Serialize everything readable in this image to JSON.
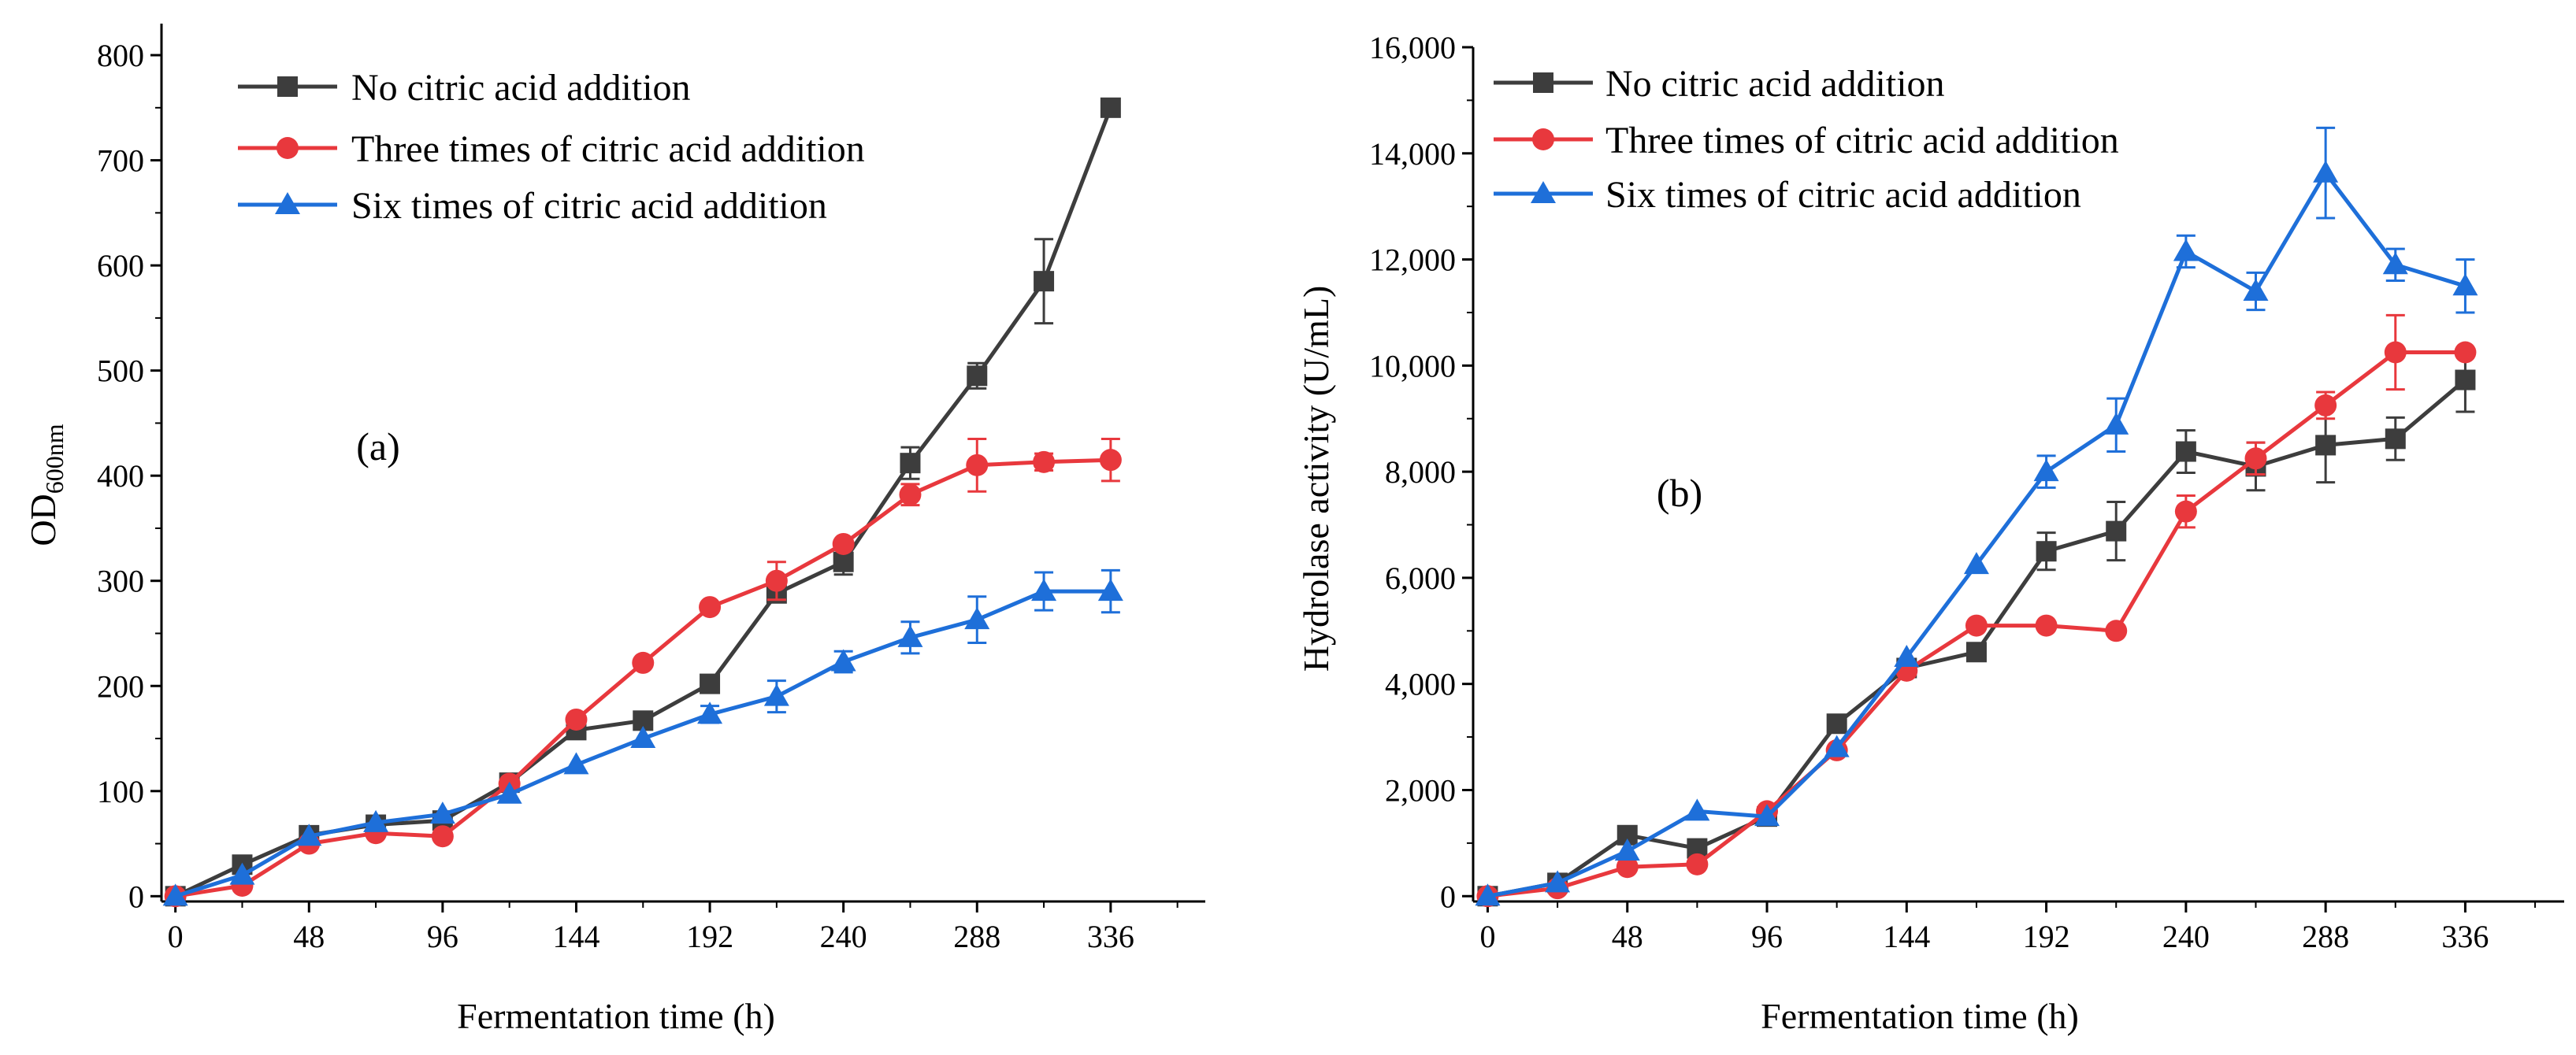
{
  "figure": {
    "background": "#ffffff"
  },
  "chart_data": [
    {
      "type": "line",
      "panel_label": "(a)",
      "xlabel": "Fermentation time (h)",
      "ylabel": "OD",
      "ylabel_sub": "600nm",
      "xlim": [
        -5,
        370
      ],
      "ylim": [
        -5,
        830
      ],
      "xticks": [
        0,
        48,
        96,
        144,
        192,
        240,
        288,
        336
      ],
      "yticks": [
        0,
        100,
        200,
        300,
        400,
        500,
        600,
        700,
        800
      ],
      "x": [
        0,
        24,
        48,
        72,
        96,
        120,
        144,
        168,
        192,
        216,
        240,
        264,
        288,
        312,
        336
      ],
      "legend_position": "top-left",
      "series": [
        {
          "name": "No citric acid addition",
          "color": "#3d3d3d",
          "marker": "square",
          "values": [
            0,
            30,
            58,
            68,
            72,
            108,
            158,
            167,
            202,
            288,
            318,
            412,
            495,
            585,
            750
          ],
          "errors": [
            0,
            0,
            0,
            0,
            0,
            0,
            0,
            0,
            0,
            0,
            12,
            15,
            12,
            40,
            0
          ]
        },
        {
          "name": "Three times of citric acid addition",
          "color": "#e8383d",
          "marker": "circle",
          "values": [
            0,
            10,
            50,
            60,
            57,
            107,
            168,
            222,
            275,
            300,
            335,
            382,
            410,
            413,
            415
          ],
          "errors": [
            0,
            0,
            0,
            0,
            0,
            0,
            0,
            0,
            0,
            18,
            0,
            10,
            25,
            8,
            20
          ]
        },
        {
          "name": "Six times of citric acid addition",
          "color": "#1e6fd9",
          "marker": "triangle",
          "values": [
            0,
            20,
            57,
            70,
            78,
            97,
            125,
            150,
            173,
            190,
            223,
            246,
            263,
            290,
            290
          ],
          "errors": [
            0,
            0,
            0,
            0,
            0,
            0,
            0,
            0,
            8,
            15,
            10,
            15,
            22,
            18,
            20
          ]
        }
      ]
    },
    {
      "type": "line",
      "panel_label": "(b)",
      "xlabel": "Fermentation time (h)",
      "ylabel": "Hydrolase activity (U/mL)",
      "xlim": [
        -5,
        370
      ],
      "ylim": [
        -100,
        16000
      ],
      "xticks": [
        0,
        48,
        96,
        144,
        192,
        240,
        288,
        336
      ],
      "yticks": [
        0,
        2000,
        4000,
        6000,
        8000,
        10000,
        12000,
        14000,
        16000
      ],
      "ytick_labels": [
        "0",
        "2,000",
        "4,000",
        "6,000",
        "8,000",
        "10,000",
        "12,000",
        "14,000",
        "16,000"
      ],
      "x": [
        0,
        24,
        48,
        72,
        96,
        120,
        144,
        168,
        192,
        216,
        240,
        264,
        288,
        312,
        336
      ],
      "legend_position": "top-left",
      "series": [
        {
          "name": "No citric acid addition",
          "color": "#3d3d3d",
          "marker": "square",
          "values": [
            0,
            250,
            1150,
            900,
            1500,
            3250,
            4300,
            4600,
            6500,
            6880,
            8380,
            8100,
            8500,
            8620,
            9730
          ],
          "errors": [
            0,
            0,
            0,
            0,
            0,
            0,
            0,
            0,
            350,
            550,
            400,
            450,
            700,
            400,
            600
          ]
        },
        {
          "name": "Three times of citric acid addition",
          "color": "#e8383d",
          "marker": "circle",
          "values": [
            0,
            150,
            550,
            600,
            1600,
            2750,
            4250,
            5100,
            5100,
            5000,
            7250,
            8250,
            9250,
            10250,
            10250
          ],
          "errors": [
            0,
            0,
            0,
            0,
            0,
            0,
            0,
            0,
            0,
            0,
            300,
            300,
            250,
            700,
            0
          ]
        },
        {
          "name": "Six times of citric acid addition",
          "color": "#1e6fd9",
          "marker": "triangle",
          "values": [
            0,
            250,
            850,
            1600,
            1500,
            2800,
            4500,
            6250,
            8000,
            8880,
            12150,
            11400,
            13630,
            11900,
            11500
          ],
          "errors": [
            0,
            0,
            0,
            0,
            0,
            0,
            0,
            0,
            300,
            500,
            300,
            350,
            850,
            300,
            500
          ]
        }
      ]
    }
  ]
}
